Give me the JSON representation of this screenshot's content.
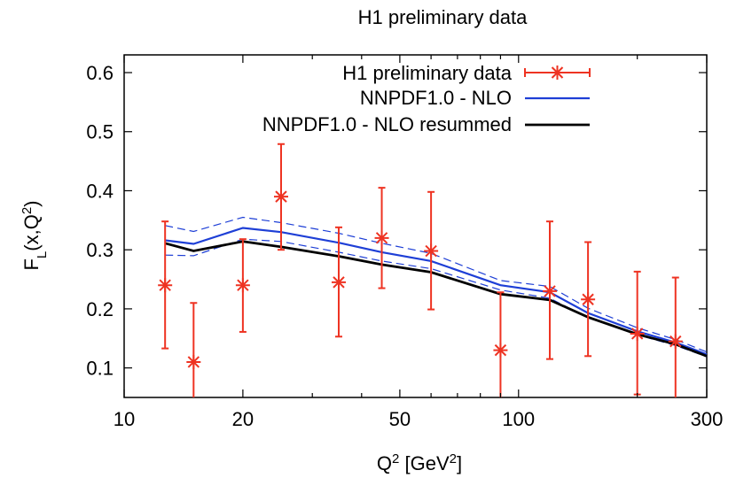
{
  "chart_data": {
    "type": "line",
    "title": "H1 preliminary data",
    "xlabel": "Q",
    "xlabel_sup": "2",
    "xlabel_rest": " [GeV",
    "xlabel_sup2": "2",
    "xlabel_end": "]",
    "ylabel": "F",
    "ylabel_sub": "L",
    "ylabel_rest": "(x,Q",
    "ylabel_sup": "2",
    "ylabel_end": ")",
    "x_scale": "log",
    "xlim": [
      10,
      300
    ],
    "ylim": [
      0.05,
      0.63
    ],
    "x_ticks": [
      10,
      20,
      50,
      100,
      300
    ],
    "x_tick_labels": [
      "10",
      "20",
      "50",
      "100",
      "300"
    ],
    "y_ticks": [
      0.1,
      0.2,
      0.3,
      0.4,
      0.5,
      0.6
    ],
    "y_tick_labels": [
      "0.1",
      "0.2",
      "0.3",
      "0.4",
      "0.5",
      "0.6"
    ],
    "legend_position": "top-right",
    "grid": false,
    "series": [
      {
        "name": "H1 preliminary data",
        "kind": "points-with-errors",
        "color": "#ee3322",
        "points": [
          {
            "x": 12.7,
            "y": 0.24,
            "ylo": 0.133,
            "yhi": 0.348
          },
          {
            "x": 15.0,
            "y": 0.11,
            "ylo": 0.05,
            "yhi": 0.21
          },
          {
            "x": 20.0,
            "y": 0.24,
            "ylo": 0.161,
            "yhi": 0.318
          },
          {
            "x": 25.0,
            "y": 0.39,
            "ylo": 0.3,
            "yhi": 0.479
          },
          {
            "x": 35.0,
            "y": 0.245,
            "ylo": 0.153,
            "yhi": 0.338
          },
          {
            "x": 45.0,
            "y": 0.32,
            "ylo": 0.235,
            "yhi": 0.405
          },
          {
            "x": 60.0,
            "y": 0.298,
            "ylo": 0.199,
            "yhi": 0.398
          },
          {
            "x": 90.0,
            "y": 0.13,
            "ylo": 0.05,
            "yhi": 0.228
          },
          {
            "x": 120.0,
            "y": 0.23,
            "ylo": 0.115,
            "yhi": 0.348
          },
          {
            "x": 150.0,
            "y": 0.216,
            "ylo": 0.12,
            "yhi": 0.313
          },
          {
            "x": 200.0,
            "y": 0.158,
            "ylo": 0.055,
            "yhi": 0.263
          },
          {
            "x": 250.0,
            "y": 0.145,
            "ylo": 0.05,
            "yhi": 0.253
          }
        ]
      },
      {
        "name": "NNPDF1.0 - NLO",
        "kind": "line-with-band",
        "color": "#1e3fd6",
        "x": [
          12.7,
          15.0,
          20.0,
          25.0,
          35.0,
          45.0,
          60.0,
          90.0,
          120.0,
          150.0,
          200.0,
          250.0,
          300.0
        ],
        "y": [
          0.316,
          0.31,
          0.337,
          0.33,
          0.312,
          0.296,
          0.281,
          0.24,
          0.228,
          0.193,
          0.162,
          0.143,
          0.123
        ],
        "y_upper": [
          0.341,
          0.331,
          0.355,
          0.346,
          0.328,
          0.311,
          0.294,
          0.248,
          0.238,
          0.201,
          0.168,
          0.148,
          0.127
        ],
        "y_lower": [
          0.291,
          0.29,
          0.318,
          0.314,
          0.296,
          0.281,
          0.268,
          0.232,
          0.218,
          0.185,
          0.156,
          0.138,
          0.119
        ]
      },
      {
        "name": "NNPDF1.0 - NLO resummed",
        "kind": "line",
        "color": "#000000",
        "x": [
          12.7,
          15.0,
          20.0,
          25.0,
          35.0,
          45.0,
          60.0,
          90.0,
          120.0,
          150.0,
          200.0,
          250.0,
          300.0
        ],
        "y": [
          0.311,
          0.298,
          0.314,
          0.305,
          0.289,
          0.275,
          0.262,
          0.225,
          0.215,
          0.186,
          0.157,
          0.14,
          0.12
        ]
      }
    ]
  }
}
